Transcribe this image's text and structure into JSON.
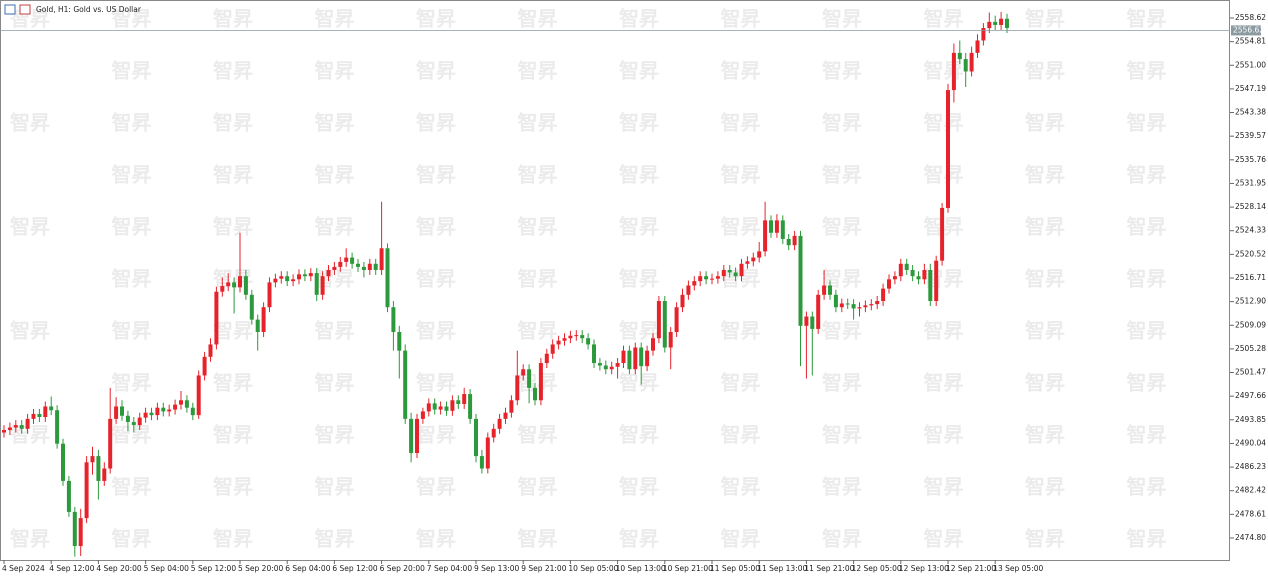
{
  "chart_data": {
    "type": "candlestick",
    "title": "Gold, H1:  Gold vs. US Dollar",
    "watermark": "智昇",
    "up_color": "#e6232b",
    "down_color": "#2c9a3c",
    "current_price": 2556.62,
    "ylim": [
      2471.25,
      2561.2
    ],
    "yticks": [
      2558.62,
      2554.81,
      {
        "value": 2551,
        "label": "2551.00"
      },
      2547.19,
      2543.38,
      2539.57,
      2535.76,
      2531.95,
      2528.14,
      2524.33,
      2520.52,
      2516.71,
      {
        "value": 2512.9,
        "label": "2512.90"
      },
      2509.09,
      2505.28,
      2501.47,
      2497.66,
      2493.85,
      2490.04,
      2486.23,
      2482.42,
      2478.61,
      {
        "value": 2474.8,
        "label": "2474.80"
      }
    ],
    "categories": [
      "4 Sep 2024",
      null,
      null,
      null,
      null,
      null,
      null,
      null,
      "4 Sep 12:00",
      null,
      null,
      null,
      null,
      null,
      null,
      null,
      "4 Sep 20:00",
      null,
      null,
      null,
      null,
      null,
      null,
      null,
      "5 Sep 04:00",
      null,
      null,
      null,
      null,
      null,
      null,
      null,
      "5 Sep 12:00",
      null,
      null,
      null,
      null,
      null,
      null,
      null,
      "5 Sep 20:00",
      null,
      null,
      null,
      null,
      null,
      null,
      null,
      "6 Sep 04:00",
      null,
      null,
      null,
      null,
      null,
      null,
      null,
      "6 Sep 12:00",
      null,
      null,
      null,
      null,
      null,
      null,
      null,
      "6 Sep 20:00",
      null,
      null,
      null,
      null,
      null,
      null,
      null,
      "7 Sep 04:00",
      null,
      null,
      null,
      null,
      null,
      null,
      null,
      "9 Sep 13:00",
      null,
      null,
      null,
      null,
      null,
      null,
      null,
      "9 Sep 21:00",
      null,
      null,
      null,
      null,
      null,
      null,
      null,
      "10 Sep 05:00",
      null,
      null,
      null,
      null,
      null,
      null,
      null,
      "10 Sep 13:00",
      null,
      null,
      null,
      null,
      null,
      null,
      null,
      "10 Sep 21:00",
      null,
      null,
      null,
      null,
      null,
      null,
      null,
      "11 Sep 05:00",
      null,
      null,
      null,
      null,
      null,
      null,
      null,
      "11 Sep 13:00",
      null,
      null,
      null,
      null,
      null,
      null,
      null,
      "11 Sep 21:00",
      null,
      null,
      null,
      null,
      null,
      null,
      null,
      "12 Sep 05:00",
      null,
      null,
      null,
      null,
      null,
      null,
      null,
      "12 Sep 13:00",
      null,
      null,
      null,
      null,
      null,
      null,
      null,
      "12 Sep 21:00",
      null,
      null,
      null,
      null,
      null,
      null,
      null,
      "13 Sep 05:00",
      null,
      null
    ],
    "open": [
      2491.8,
      2492.2,
      2492.6,
      2493.0,
      2492.4,
      2494.0,
      2494.8,
      2494.3,
      2496.0,
      2495.4,
      2490.0,
      2484.0,
      2479.0,
      2473.5,
      2478.0,
      2487.0,
      2488.0,
      2484.0,
      2486.0,
      2494.0,
      2496.0,
      2494.5,
      2493.5,
      2493.0,
      2494.2,
      2495.0,
      2494.6,
      2495.8,
      2495.2,
      2495.5,
      2496.3,
      2497.0,
      2495.8,
      2494.6,
      2501.0,
      2504.0,
      2506.0,
      2514.5,
      2515.4,
      2516.0,
      2515.2,
      2517.0,
      2514.0,
      2510.0,
      2508.0,
      2512.0,
      2516.0,
      2516.6,
      2517.0,
      2516.2,
      2516.5,
      2517.3,
      2517.0,
      2517.5,
      2514.0,
      2517.0,
      2518.0,
      2518.5,
      2519.3,
      2520.0,
      2519.0,
      2518.5,
      2518.0,
      2519.0,
      2518.0,
      2521.5,
      2512.0,
      2508.0,
      2505.0,
      2494.0,
      2488.5,
      2494.0,
      2495.2,
      2496.5,
      2495.5,
      2496.0,
      2495.3,
      2497.0,
      2496.4,
      2498.0,
      2494.0,
      2488.0,
      2486.0,
      2491.0,
      2492.4,
      2494.0,
      2495.0,
      2497.0,
      2501.0,
      2502.0,
      2499.0,
      2497.0,
      2503.0,
      2504.5,
      2506.0,
      2506.6,
      2507.0,
      2507.4,
      2507.5,
      2507.0,
      2506.0,
      2503.0,
      2502.6,
      2502.0,
      2502.4,
      2503.0,
      2505.0,
      2502.0,
      2505.5,
      2502.5,
      2505.0,
      2507.0,
      2513.0,
      2505.5,
      2508.0,
      2512.0,
      2514.0,
      2515.5,
      2516.2,
      2517.0,
      2516.5,
      2516.6,
      2517.0,
      2518.0,
      2517.6,
      2517.0,
      2519.0,
      2519.4,
      2520.0,
      2521.0,
      2526.0,
      2524.0,
      2526.0,
      2523.0,
      2522.0,
      2523.5,
      2509.0,
      2510.5,
      2508.5,
      2514.0,
      2515.5,
      2514.0,
      2512.0,
      2512.6,
      2512.5,
      2511.8,
      2512.0,
      2512.3,
      2512.5,
      2513.0,
      2515.0,
      2516.5,
      2517.0,
      2519.0,
      2518.0,
      2517.0,
      2516.5,
      2518.0,
      2513.0,
      2519.5,
      2528.0,
      2547.0,
      2553.0,
      2552.0,
      2550.0,
      2553.0,
      2555.0,
      2557.0,
      2558.0,
      2557.5,
      2558.5
    ],
    "high": [
      2493.0,
      2493.4,
      2493.8,
      2493.8,
      2494.8,
      2495.6,
      2495.6,
      2496.8,
      2497.6,
      2496.2,
      2490.8,
      2484.8,
      2479.8,
      2479.5,
      2488.0,
      2489.5,
      2489.0,
      2487.0,
      2499.0,
      2497.5,
      2497.0,
      2495.3,
      2494.3,
      2495.0,
      2495.8,
      2495.8,
      2496.6,
      2496.6,
      2496.3,
      2497.1,
      2498.5,
      2497.8,
      2496.6,
      2501.8,
      2504.8,
      2507.0,
      2515.3,
      2516.8,
      2517.5,
      2516.8,
      2524.0,
      2518.0,
      2514.8,
      2510.8,
      2512.8,
      2516.8,
      2517.4,
      2517.8,
      2517.8,
      2517.3,
      2518.1,
      2518.1,
      2518.3,
      2518.3,
      2517.8,
      2518.8,
      2519.3,
      2520.1,
      2521.5,
      2520.8,
      2519.8,
      2519.3,
      2519.8,
      2519.8,
      2529.0,
      2522.3,
      2513.0,
      2509.0,
      2506.0,
      2495.0,
      2494.8,
      2495.8,
      2497.3,
      2497.3,
      2496.8,
      2496.8,
      2497.8,
      2497.8,
      2499.0,
      2498.8,
      2494.8,
      2489.0,
      2491.8,
      2493.2,
      2494.8,
      2495.8,
      2497.8,
      2505.0,
      2502.8,
      2502.8,
      2499.8,
      2503.8,
      2505.3,
      2506.8,
      2507.4,
      2507.8,
      2508.2,
      2508.3,
      2508.3,
      2507.8,
      2506.8,
      2503.8,
      2503.4,
      2503.2,
      2503.8,
      2505.8,
      2505.8,
      2506.3,
      2506.3,
      2505.8,
      2507.8,
      2513.8,
      2513.8,
      2508.8,
      2512.8,
      2515.0,
      2516.3,
      2517.0,
      2517.8,
      2517.8,
      2517.4,
      2517.8,
      2518.8,
      2518.8,
      2518.4,
      2519.8,
      2520.2,
      2520.8,
      2522.5,
      2529.0,
      2526.8,
      2527.0,
      2526.8,
      2523.8,
      2524.3,
      2524.3,
      2511.3,
      2511.3,
      2514.8,
      2518.0,
      2516.3,
      2514.8,
      2513.4,
      2513.4,
      2513.3,
      2512.8,
      2513.1,
      2513.3,
      2513.8,
      2515.8,
      2517.3,
      2517.8,
      2519.8,
      2519.8,
      2518.8,
      2517.8,
      2519.0,
      2519.0,
      2520.3,
      2528.8,
      2548.0,
      2554.5,
      2555.0,
      2553.0,
      2554.0,
      2556.0,
      2557.8,
      2559.5,
      2559.0,
      2559.6,
      2559.3
    ],
    "low": [
      2491.0,
      2491.4,
      2491.8,
      2491.6,
      2491.6,
      2493.2,
      2493.5,
      2493.5,
      2494.6,
      2489.2,
      2483.2,
      2478.2,
      2471.8,
      2471.9,
      2477.2,
      2485.0,
      2481.0,
      2483.2,
      2485.2,
      2493.2,
      2493.7,
      2492.0,
      2491.8,
      2492.2,
      2493.4,
      2493.8,
      2493.8,
      2494.4,
      2494.4,
      2494.7,
      2495.5,
      2495.0,
      2493.8,
      2494.0,
      2500.2,
      2503.2,
      2505.2,
      2513.7,
      2514.6,
      2511.0,
      2514.4,
      2513.2,
      2509.2,
      2505.0,
      2507.2,
      2511.2,
      2515.2,
      2515.8,
      2515.4,
      2515.4,
      2515.7,
      2516.2,
      2516.2,
      2513.0,
      2513.2,
      2516.2,
      2517.2,
      2517.7,
      2518.5,
      2518.2,
      2517.7,
      2516.8,
      2517.2,
      2517.2,
      2517.2,
      2511.2,
      2505.0,
      2500.5,
      2493.2,
      2487.0,
      2487.7,
      2493.2,
      2494.4,
      2494.7,
      2494.7,
      2494.5,
      2494.5,
      2495.6,
      2495.6,
      2493.2,
      2487.0,
      2485.2,
      2485.2,
      2490.2,
      2491.6,
      2493.2,
      2494.2,
      2496.2,
      2500.2,
      2496.5,
      2496.2,
      2496.2,
      2502.2,
      2503.7,
      2505.2,
      2505.8,
      2506.2,
      2506.6,
      2506.2,
      2505.2,
      2502.2,
      2501.8,
      2501.2,
      2501.2,
      2500.5,
      2502.2,
      2501.2,
      2501.2,
      2499.5,
      2501.7,
      2504.2,
      2506.2,
      2504.7,
      2502.0,
      2507.2,
      2511.2,
      2513.2,
      2514.7,
      2515.4,
      2515.7,
      2515.7,
      2515.8,
      2516.2,
      2516.8,
      2516.2,
      2516.2,
      2518.2,
      2518.6,
      2519.2,
      2520.2,
      2523.2,
      2523.2,
      2522.2,
      2521.2,
      2521.2,
      2502.5,
      2500.5,
      2501.0,
      2507.7,
      2513.2,
      2513.2,
      2511.2,
      2511.2,
      2511.7,
      2510.0,
      2510.5,
      2511.2,
      2511.5,
      2511.7,
      2512.2,
      2514.2,
      2515.7,
      2516.2,
      2517.2,
      2516.2,
      2515.7,
      2515.7,
      2512.2,
      2512.2,
      2518.7,
      2527.2,
      2545.0,
      2551.2,
      2547.5,
      2549.2,
      2552.2,
      2554.2,
      2556.2,
      2556.7,
      2556.7,
      2556.2
    ],
    "close": [
      2492.2,
      2492.6,
      2493.0,
      2492.4,
      2494.0,
      2494.8,
      2494.3,
      2496.0,
      2495.4,
      2490.0,
      2484.0,
      2479.0,
      2473.5,
      2478.0,
      2487.0,
      2488.0,
      2484.0,
      2486.0,
      2494.0,
      2496.0,
      2494.5,
      2493.5,
      2493.0,
      2494.2,
      2495.0,
      2494.6,
      2495.8,
      2495.2,
      2495.5,
      2496.3,
      2497.0,
      2495.8,
      2494.6,
      2501.0,
      2504.0,
      2506.0,
      2514.5,
      2515.4,
      2516.0,
      2515.2,
      2517.0,
      2514.0,
      2510.0,
      2508.0,
      2512.0,
      2516.0,
      2516.6,
      2517.0,
      2516.2,
      2516.5,
      2517.3,
      2517.0,
      2517.5,
      2514.0,
      2517.0,
      2518.0,
      2518.5,
      2519.3,
      2520.0,
      2519.0,
      2518.5,
      2518.0,
      2519.0,
      2518.0,
      2521.5,
      2512.0,
      2508.0,
      2505.0,
      2494.0,
      2488.5,
      2494.0,
      2495.2,
      2496.5,
      2495.5,
      2496.0,
      2495.3,
      2497.0,
      2496.4,
      2498.0,
      2494.0,
      2488.0,
      2486.0,
      2491.0,
      2492.4,
      2494.0,
      2495.0,
      2497.0,
      2501.0,
      2502.0,
      2499.0,
      2497.0,
      2503.0,
      2504.5,
      2506.0,
      2506.6,
      2507.0,
      2507.4,
      2507.5,
      2507.0,
      2506.0,
      2503.0,
      2502.6,
      2502.0,
      2502.4,
      2503.0,
      2505.0,
      2502.0,
      2505.5,
      2502.5,
      2505.0,
      2507.0,
      2513.0,
      2505.5,
      2508.0,
      2512.0,
      2514.0,
      2515.5,
      2516.2,
      2517.0,
      2516.5,
      2516.6,
      2517.0,
      2518.0,
      2517.6,
      2517.0,
      2519.0,
      2519.4,
      2520.0,
      2521.0,
      2526.0,
      2524.0,
      2526.0,
      2523.0,
      2522.0,
      2523.5,
      2509.0,
      2510.5,
      2508.5,
      2514.0,
      2515.5,
      2514.0,
      2512.0,
      2512.6,
      2512.5,
      2511.8,
      2512.0,
      2512.3,
      2512.5,
      2513.0,
      2515.0,
      2516.5,
      2517.0,
      2519.0,
      2518.0,
      2517.0,
      2516.5,
      2518.0,
      2513.0,
      2519.5,
      2528.0,
      2547.0,
      2553.0,
      2552.0,
      2550.0,
      2553.0,
      2555.0,
      2557.0,
      2558.0,
      2557.5,
      2558.5,
      2557.0
    ]
  }
}
